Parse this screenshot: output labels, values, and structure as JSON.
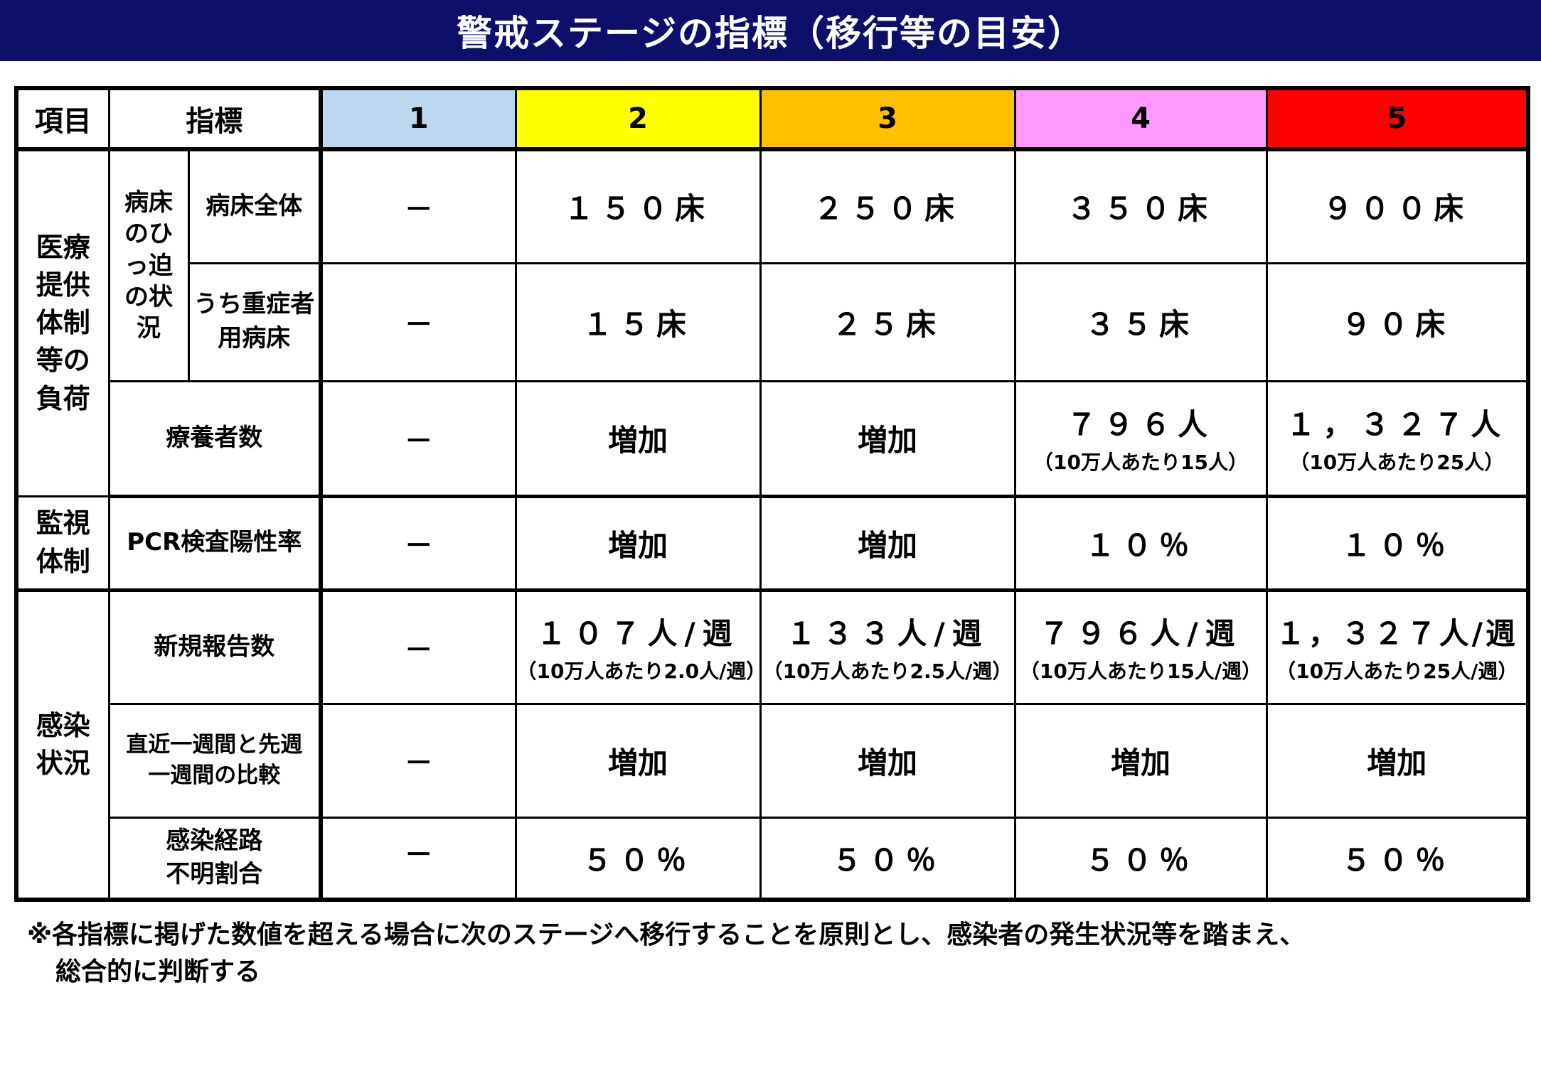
{
  "title": "警戒ステージの指標（移行等の目安）",
  "header": {
    "item": "項目",
    "indicator": "指標",
    "stages": [
      {
        "label": "1",
        "color": "#bdd7ee"
      },
      {
        "label": "2",
        "color": "#ffff00"
      },
      {
        "label": "3",
        "color": "#ffc000"
      },
      {
        "label": "4",
        "color": "#ff99ff"
      },
      {
        "label": "5",
        "color": "#ff0000"
      }
    ]
  },
  "sections": {
    "medical": "医療提供体制等の負荷",
    "monitoring": "監視体制",
    "infection": "感染状況"
  },
  "sublabels": {
    "bed_pressure": "病床のひっ迫の状況"
  },
  "rows": {
    "beds_total": {
      "label": "病床全体",
      "values": [
        "－",
        "１５０床",
        "２５０床",
        "３５０床",
        "９００床"
      ]
    },
    "beds_severe": {
      "label": "うち重症者用病床",
      "values": [
        "－",
        "１５床",
        "２５床",
        "３５床",
        "９０床"
      ]
    },
    "patients": {
      "label": "療養者数",
      "values": [
        {
          "main": "－",
          "sub": ""
        },
        {
          "main": "増加",
          "sub": ""
        },
        {
          "main": "増加",
          "sub": ""
        },
        {
          "main": "７９６人",
          "sub": "（10万人あたり15人）"
        },
        {
          "main": "１，３２７人",
          "sub": "（10万人あたり25人）"
        }
      ]
    },
    "pcr": {
      "label": "PCR検査陽性率",
      "values": [
        "－",
        "増加",
        "増加",
        "１０％",
        "１０％"
      ]
    },
    "new_reports": {
      "label": "新規報告数",
      "values": [
        {
          "main": "－",
          "sub": ""
        },
        {
          "main": "１０７人/週",
          "sub": "（10万人あたり2.0人/週）"
        },
        {
          "main": "１３３人/週",
          "sub": "（10万人あたり2.5人/週）"
        },
        {
          "main": "７９６人/週",
          "sub": "（10万人あたり15人/週）"
        },
        {
          "main": "１，３２７人/週",
          "sub": "（10万人あたり25人/週）"
        }
      ]
    },
    "weekly_compare": {
      "label": "直近一週間と先週一週間の比較",
      "values": [
        "－",
        "増加",
        "増加",
        "増加",
        "増加"
      ]
    },
    "unknown_route": {
      "label": "感染経路不明割合",
      "values": [
        "－",
        "５０％",
        "５０％",
        "５０％",
        "５０％"
      ]
    }
  },
  "note": {
    "line1": "※各指標に掲げた数値を超える場合に次のステージへ移行することを原則とし、感染者の発生状況等を踏まえ、",
    "line2": "総合的に判断する"
  }
}
